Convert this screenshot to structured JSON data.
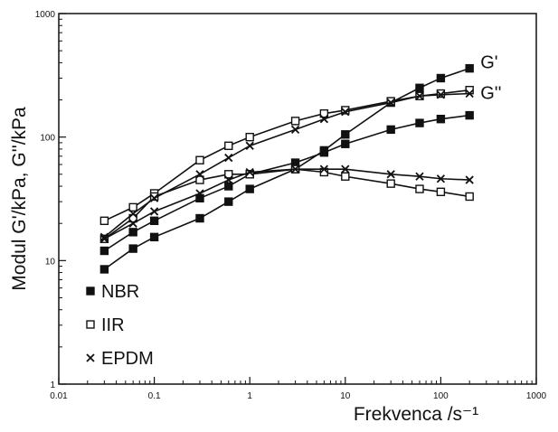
{
  "chart_data": {
    "type": "line",
    "y_label": "Modul  G'/kPa, G''/kPa",
    "x_label": "Frekvenca /s⁻¹",
    "log_x": true,
    "log_y": true,
    "x": [
      0.03,
      0.06,
      0.1,
      0.3,
      0.6,
      1,
      3,
      6,
      10,
      30,
      60,
      100,
      200
    ],
    "xlim": [
      0.01,
      1000
    ],
    "xticks": [
      0.01,
      0.1,
      1,
      10,
      100,
      1000
    ],
    "ylim": [
      1,
      1000
    ],
    "yticks": [
      1,
      10,
      100,
      1000
    ],
    "curve_labels": [
      "G'",
      "G''"
    ],
    "legend": "lower left",
    "color": "#111111",
    "series": [
      {
        "name": "NBR",
        "marker": "filled-square",
        "curves": [
          {
            "values": [
              8.5,
              12.5,
              15.5,
              22,
              30,
              38,
              55,
              78,
              105,
              190,
              250,
              300,
              360
            ]
          },
          {
            "values": [
              12,
              17,
              21,
              32,
              40,
              50,
              62,
              75,
              88,
              115,
              130,
              140,
              150
            ]
          }
        ]
      },
      {
        "name": "IIR",
        "marker": "open-square",
        "curves": [
          {
            "values": [
              21,
              27,
              35,
              65,
              85,
              100,
              135,
              155,
              165,
              195,
              215,
              225,
              240
            ]
          },
          {
            "values": [
              15,
              22,
              33,
              45,
              50,
              50,
              55,
              52,
              48,
              42,
              38,
              36,
              33
            ]
          }
        ]
      },
      {
        "name": "EPDM",
        "marker": "cross",
        "curves": [
          {
            "values": [
              15.5,
              24,
              32,
              50,
              68,
              85,
              115,
              140,
              160,
              190,
              215,
              220,
              225
            ]
          },
          {
            "values": [
              15,
              20,
              25,
              35,
              45,
              52,
              55,
              55,
              55,
              50,
              48,
              46,
              45
            ]
          }
        ]
      }
    ]
  }
}
